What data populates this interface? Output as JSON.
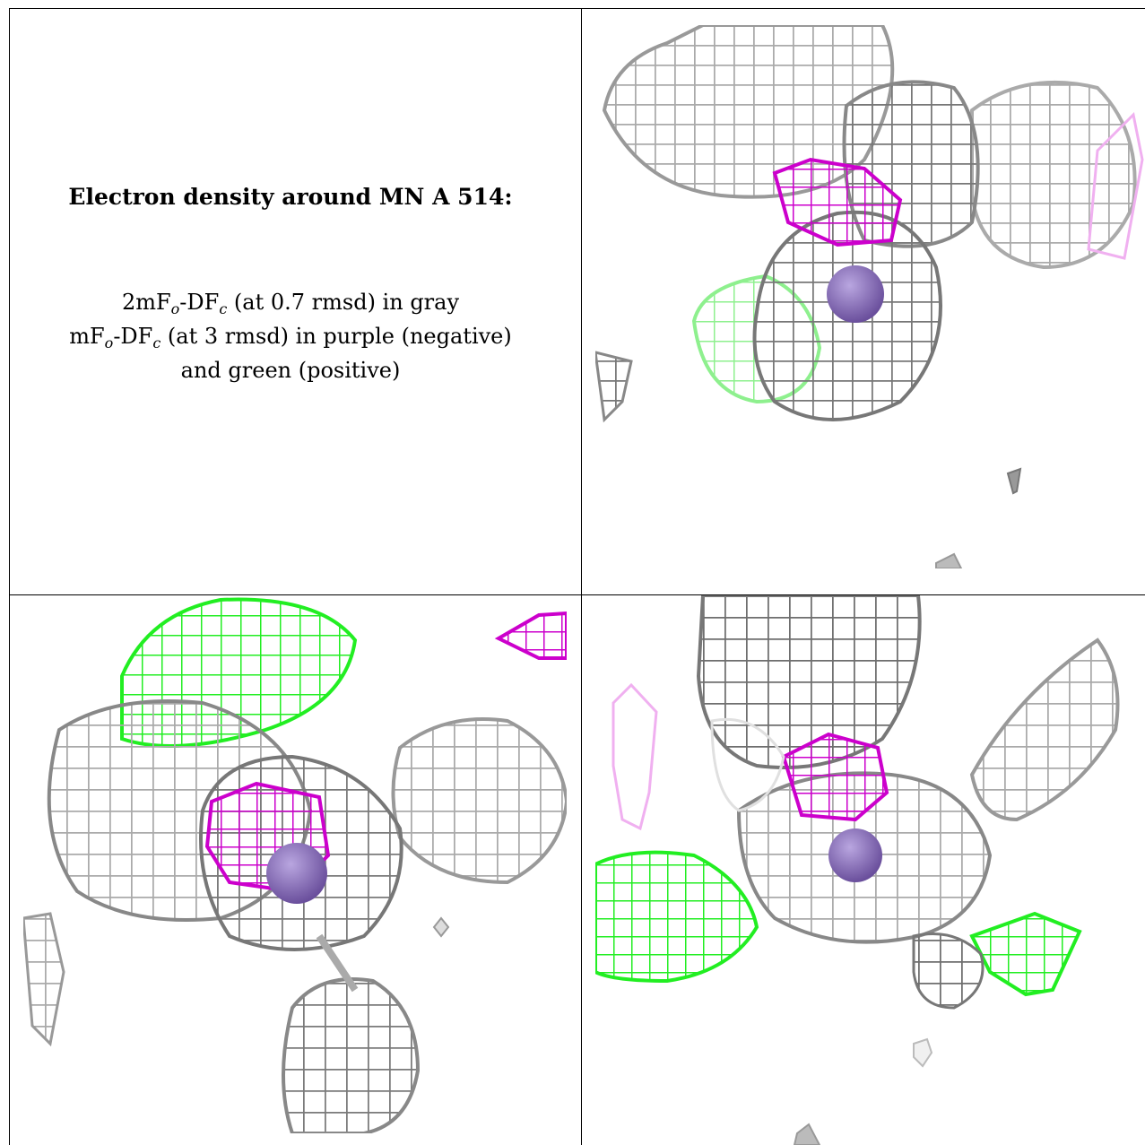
{
  "caption": {
    "title": "Electron density around MN A 514:",
    "line1": {
      "a": "2mF",
      "sub_o": "o",
      "b": "-DF",
      "sub_c": "c",
      "rest": " (at 0.7 rmsd) in gray"
    },
    "line2": {
      "a": "mF",
      "sub_o": "o",
      "b": "-DF",
      "sub_c": "c",
      "rest": " (at 3 rmsd) in purple (negative)"
    },
    "line3": "and green (positive)"
  },
  "colors": {
    "map_2fofc": "#b4b4b4",
    "map_2fofc_dark": "#6e6e6e",
    "map_fofc_negative": "#cc00cc",
    "map_fofc_positive": "#22ee22",
    "mn_atom": "#8a70b8"
  },
  "panels": [
    {
      "id": "top-right",
      "description_icon": "density-view-1"
    },
    {
      "id": "bottom-left",
      "description_icon": "density-view-2"
    },
    {
      "id": "bottom-right",
      "description_icon": "density-view-3"
    }
  ]
}
